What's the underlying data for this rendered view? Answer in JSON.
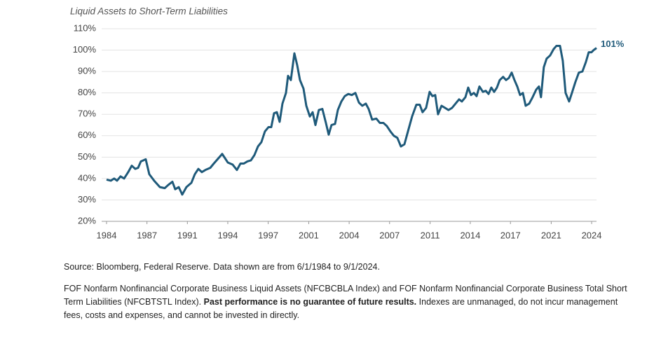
{
  "chart_data": {
    "type": "line",
    "title": "Liquid Assets to Short-Term Liabilities",
    "xlim": [
      1984.42,
      2024.67
    ],
    "ylim": [
      20,
      110
    ],
    "xticks": [
      {
        "value": 1984.42,
        "label": "1984"
      },
      {
        "value": 1987.74,
        "label": "1987"
      },
      {
        "value": 1991.06,
        "label": "1991"
      },
      {
        "value": 1994.38,
        "label": "1994"
      },
      {
        "value": 1997.7,
        "label": "1997"
      },
      {
        "value": 2001.03,
        "label": "2001"
      },
      {
        "value": 2004.35,
        "label": "2004"
      },
      {
        "value": 2007.67,
        "label": "2007"
      },
      {
        "value": 2011.0,
        "label": "2011"
      },
      {
        "value": 2014.3,
        "label": "2014"
      },
      {
        "value": 2017.6,
        "label": "2017"
      },
      {
        "value": 2020.95,
        "label": "2021"
      },
      {
        "value": 2024.27,
        "label": "2024"
      }
    ],
    "yticks": [
      {
        "value": 20,
        "label": "20%"
      },
      {
        "value": 30,
        "label": "30%"
      },
      {
        "value": 40,
        "label": "40%"
      },
      {
        "value": 50,
        "label": "50%"
      },
      {
        "value": 60,
        "label": "60%"
      },
      {
        "value": 70,
        "label": "70%"
      },
      {
        "value": 80,
        "label": "80%"
      },
      {
        "value": 90,
        "label": "90%"
      },
      {
        "value": 100,
        "label": "100%"
      },
      {
        "value": 110,
        "label": "110%"
      }
    ],
    "grid": true,
    "series": [
      {
        "color": "#1f5a7a",
        "x": [
          1984.42,
          1984.77,
          1985.05,
          1985.28,
          1985.57,
          1985.86,
          1986.2,
          1986.49,
          1986.78,
          1987.01,
          1987.24,
          1987.64,
          1987.93,
          1988.33,
          1988.8,
          1989.2,
          1989.49,
          1989.83,
          1990.06,
          1990.35,
          1990.64,
          1990.98,
          1991.39,
          1991.67,
          1991.96,
          1992.25,
          1992.54,
          1992.94,
          1993.23,
          1993.69,
          1993.92,
          1994.38,
          1994.78,
          1995.13,
          1995.42,
          1995.7,
          1995.99,
          1996.28,
          1996.57,
          1996.86,
          1997.14,
          1997.43,
          1997.72,
          1997.95,
          1998.18,
          1998.41,
          1998.64,
          1998.87,
          1999.16,
          1999.33,
          1999.56,
          1999.85,
          2000.08,
          2000.31,
          2000.6,
          2000.83,
          2001.12,
          2001.35,
          2001.58,
          2001.86,
          2002.15,
          2002.44,
          2002.67,
          2002.9,
          2003.19,
          2003.42,
          2003.71,
          2003.99,
          2004.28,
          2004.57,
          2004.86,
          2005.15,
          2005.43,
          2005.72,
          2005.95,
          2006.24,
          2006.58,
          2006.87,
          2007.16,
          2007.45,
          2007.74,
          2008.02,
          2008.31,
          2008.6,
          2008.89,
          2009.18,
          2009.52,
          2009.87,
          2010.15,
          2010.38,
          2010.67,
          2010.96,
          2011.19,
          2011.42,
          2011.65,
          2011.94,
          2012.23,
          2012.51,
          2012.8,
          2013.09,
          2013.38,
          2013.61,
          2013.9,
          2014.13,
          2014.36,
          2014.59,
          2014.82,
          2015.05,
          2015.34,
          2015.57,
          2015.8,
          2016.03,
          2016.26,
          2016.49,
          2016.72,
          2017.0,
          2017.24,
          2017.47,
          2017.7,
          2017.93,
          2018.16,
          2018.39,
          2018.62,
          2018.85,
          2019.14,
          2019.42,
          2019.71,
          2019.94,
          2020.11,
          2020.34,
          2020.57,
          2020.86,
          2021.15,
          2021.38,
          2021.67,
          2021.9,
          2022.13,
          2022.42,
          2022.65,
          2022.93,
          2023.22,
          2023.51,
          2023.8,
          2024.03,
          2024.26,
          2024.43,
          2024.67
        ],
        "values": [
          39.5,
          39,
          40,
          39,
          41,
          40,
          43,
          46,
          44.5,
          45,
          48,
          49,
          42,
          39,
          36,
          35.5,
          37,
          38.5,
          35,
          36,
          32.5,
          36,
          38,
          42,
          44.5,
          43,
          44,
          45,
          47,
          50,
          51.5,
          47.5,
          46.5,
          44,
          47,
          47,
          48,
          48.5,
          51,
          55,
          57,
          62,
          64,
          64,
          70.5,
          71,
          66.5,
          75,
          80,
          88,
          86,
          98.5,
          93,
          86,
          82,
          74,
          69,
          71,
          65,
          72,
          72.5,
          66,
          60.5,
          65,
          65.5,
          72,
          76,
          78.5,
          79.5,
          79,
          80,
          75.5,
          74,
          75,
          72.5,
          67.5,
          68,
          66,
          66,
          64.5,
          62,
          60,
          59,
          55,
          56,
          62,
          69,
          74.5,
          74.5,
          71,
          73,
          80.5,
          78.5,
          79,
          70,
          74,
          73,
          72,
          73,
          75,
          77,
          76,
          78,
          82.5,
          79,
          80,
          78.5,
          83,
          80.5,
          81,
          79.5,
          82.5,
          80.5,
          82.5,
          86,
          87.5,
          86,
          87,
          89.5,
          86,
          83,
          79,
          80,
          74,
          75,
          78,
          81.5,
          83,
          78,
          92,
          96,
          97.5,
          100.5,
          102,
          102,
          95,
          80,
          76,
          80,
          85,
          89.5,
          90,
          94.5,
          99,
          99,
          100,
          101
        ]
      }
    ],
    "annotations": [
      {
        "label": "101%",
        "value": 101
      }
    ]
  },
  "footnotes": {
    "source": "Source: Bloomberg, Federal Reserve. Data shown are from 6/1/1984 to 9/1/2024.",
    "disclaimer_start": "FOF Nonfarm Nonfinancial Corporate Business Liquid Assets (NFCBCBLA Index) and FOF Nonfarm Nonfinancial Corporate Business Total Short Term Liabilities (NFCBTSTL Index).",
    "disclaimer_bold": "Past performance is no guarantee of future results.",
    "disclaimer_end": "Indexes are unmanaged, do not incur management fees, costs and expenses, and cannot be invested in directly."
  }
}
